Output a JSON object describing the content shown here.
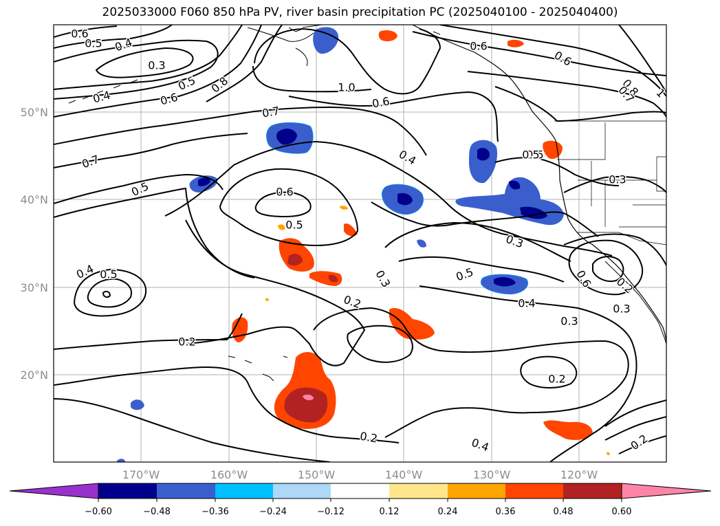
{
  "title": "2025033000 F060 850 hPa PV, river basin precipitation PC (2025040100 - 2025040400)",
  "lat_labels": [
    "50°N",
    "40°N",
    "30°N",
    "20°N"
  ],
  "lon_labels": [
    "170°W",
    "160°W",
    "150°W",
    "140°W",
    "130°W",
    "120°W"
  ],
  "contour_labels": [
    "0.6",
    "0.5",
    "0.4",
    "0.3",
    "0.5",
    "0.4",
    "0.6",
    "0.8",
    "1.0",
    "0.6",
    "0.7",
    "0.7",
    "0.5",
    "0.6",
    "0.5",
    "0.4",
    "0.5",
    "0.3",
    "0.4",
    "0.5",
    "0.3",
    "0.2",
    "0.2",
    "0.4",
    "0.3",
    "0.2",
    "0.2",
    "0.4",
    "0.6",
    "0.6",
    "0.8",
    "0.7",
    "1",
    "0.6",
    "0.3",
    "0.2",
    "0.3",
    "0.5",
    "0.5",
    "0.2"
  ],
  "colorbar": {
    "ticks": [
      "−0.60",
      "−0.48",
      "−0.36",
      "−0.24",
      "−0.12",
      "0.12",
      "0.24",
      "0.36",
      "0.48",
      "0.60"
    ],
    "colors": [
      "#9932cc",
      "#00008b",
      "#3a5fcd",
      "#00bfff",
      "#add8f7",
      "#ffffff",
      "#ffe68c",
      "#ffa500",
      "#ff4500",
      "#b22222",
      "#ff85a8"
    ]
  },
  "fill_colors": {
    "neg1": "#3a5fcd",
    "neg2": "#00008b",
    "neg3": "#00bfff",
    "pos1": "#ffa500",
    "pos2": "#ff4500",
    "pos3": "#b22222",
    "pos4": "#ff85a8",
    "pos0": "#ffe68c"
  }
}
